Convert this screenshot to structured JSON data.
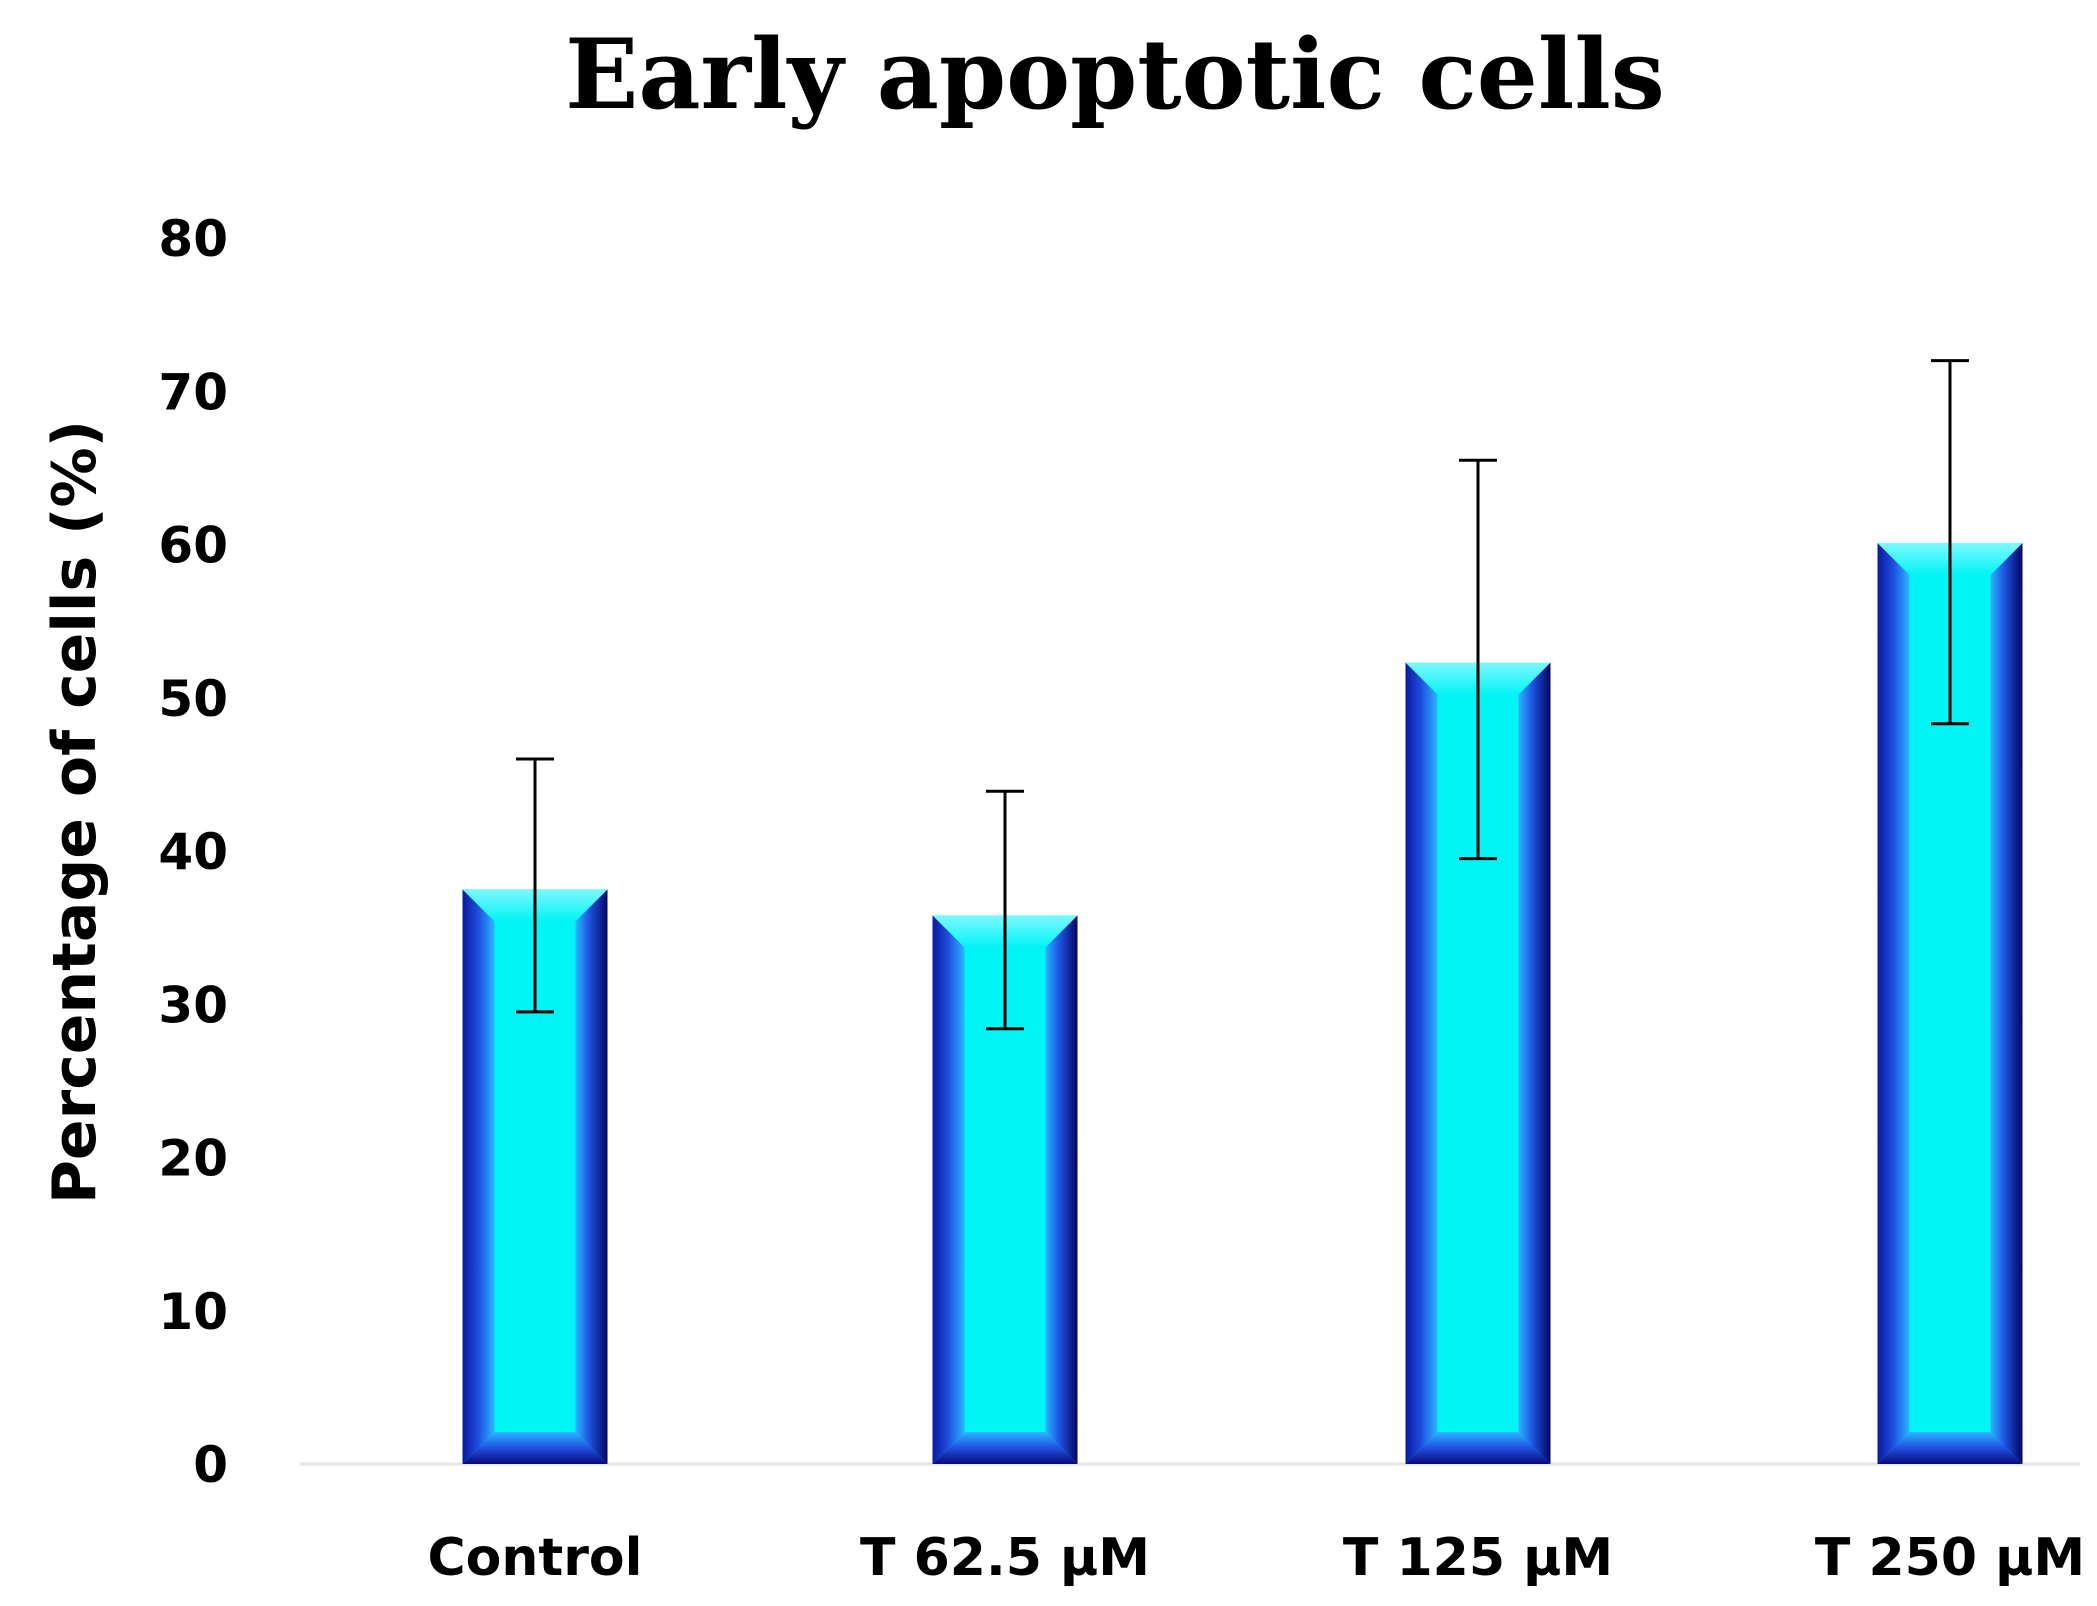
{
  "chart_data": {
    "type": "bar",
    "title": "Early apoptotic cells",
    "xlabel": "",
    "ylabel": "Percentage of cells (%)",
    "categories": [
      "Control",
      "T 62.5 μM",
      "T 125 μM",
      "T 250 μM"
    ],
    "series": [
      {
        "name": "Early apoptotic cells",
        "values": [
          37.5,
          35.8,
          52.3,
          60.1
        ],
        "error_lower": [
          8.0,
          7.4,
          12.8,
          11.8
        ],
        "error_upper": [
          8.5,
          8.1,
          13.2,
          11.9
        ]
      }
    ],
    "ylim": [
      0,
      80
    ],
    "yticks": [
      0,
      10,
      20,
      30,
      40,
      50,
      60,
      70,
      80
    ],
    "grid": false,
    "legend": "none",
    "colors": {
      "bar_face": "#00f4f4",
      "bar_bevel_light": "#29b6ff",
      "bar_bevel_mid": "#1f4fe0",
      "bar_bevel_dark": "#0a0a78",
      "error_bar": "#000000",
      "axis": "#e6e6e6"
    }
  }
}
